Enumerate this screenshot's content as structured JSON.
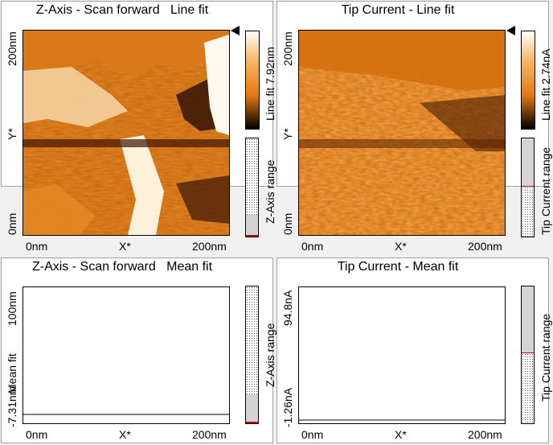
{
  "panels": [
    {
      "title": "Z-Axis - Scan forward   Line fit",
      "ytop": "200nm",
      "ymid": "Y*",
      "ybot": "0nm",
      "xleft": "0nm",
      "xmid": "X*",
      "xright": "200nm",
      "cbar_label": "Line fit 7.92nm",
      "range_label": "Z-Axis range",
      "range_fill": 0.2
    },
    {
      "title": "Tip Current - Line fit",
      "ytop": "200nm",
      "ymid": "Y*",
      "ybot": "0nm",
      "xleft": "0nm",
      "xmid": "X*",
      "xright": "200nm",
      "cbar_label": "Line fit 2.74nA",
      "range_label": "Tip Current range",
      "range_fill": 0.5
    },
    {
      "title": "Z-Axis - Scan forward   Mean fit",
      "ytop": "100nm",
      "ymid": "Mean fit",
      "ybot": "-7.31nm",
      "xleft": "0nm",
      "xmid": "X*",
      "xright": "200nm",
      "range_label": "Z-Axis range",
      "range_fill": 0.2
    },
    {
      "title": "Tip Current - Mean fit",
      "ytop": "94.8nA",
      "ymid": "",
      "ybot": "-1.26nA",
      "xleft": "0nm",
      "xmid": "X*",
      "xright": "200nm",
      "range_label": "Tip Current range",
      "range_fill": 0.5
    }
  ],
  "colors": {
    "orange": "#e87a12",
    "light": "#fff3e0",
    "dark": "#1a0800"
  },
  "icons": [
    "scale-marker-icon"
  ]
}
